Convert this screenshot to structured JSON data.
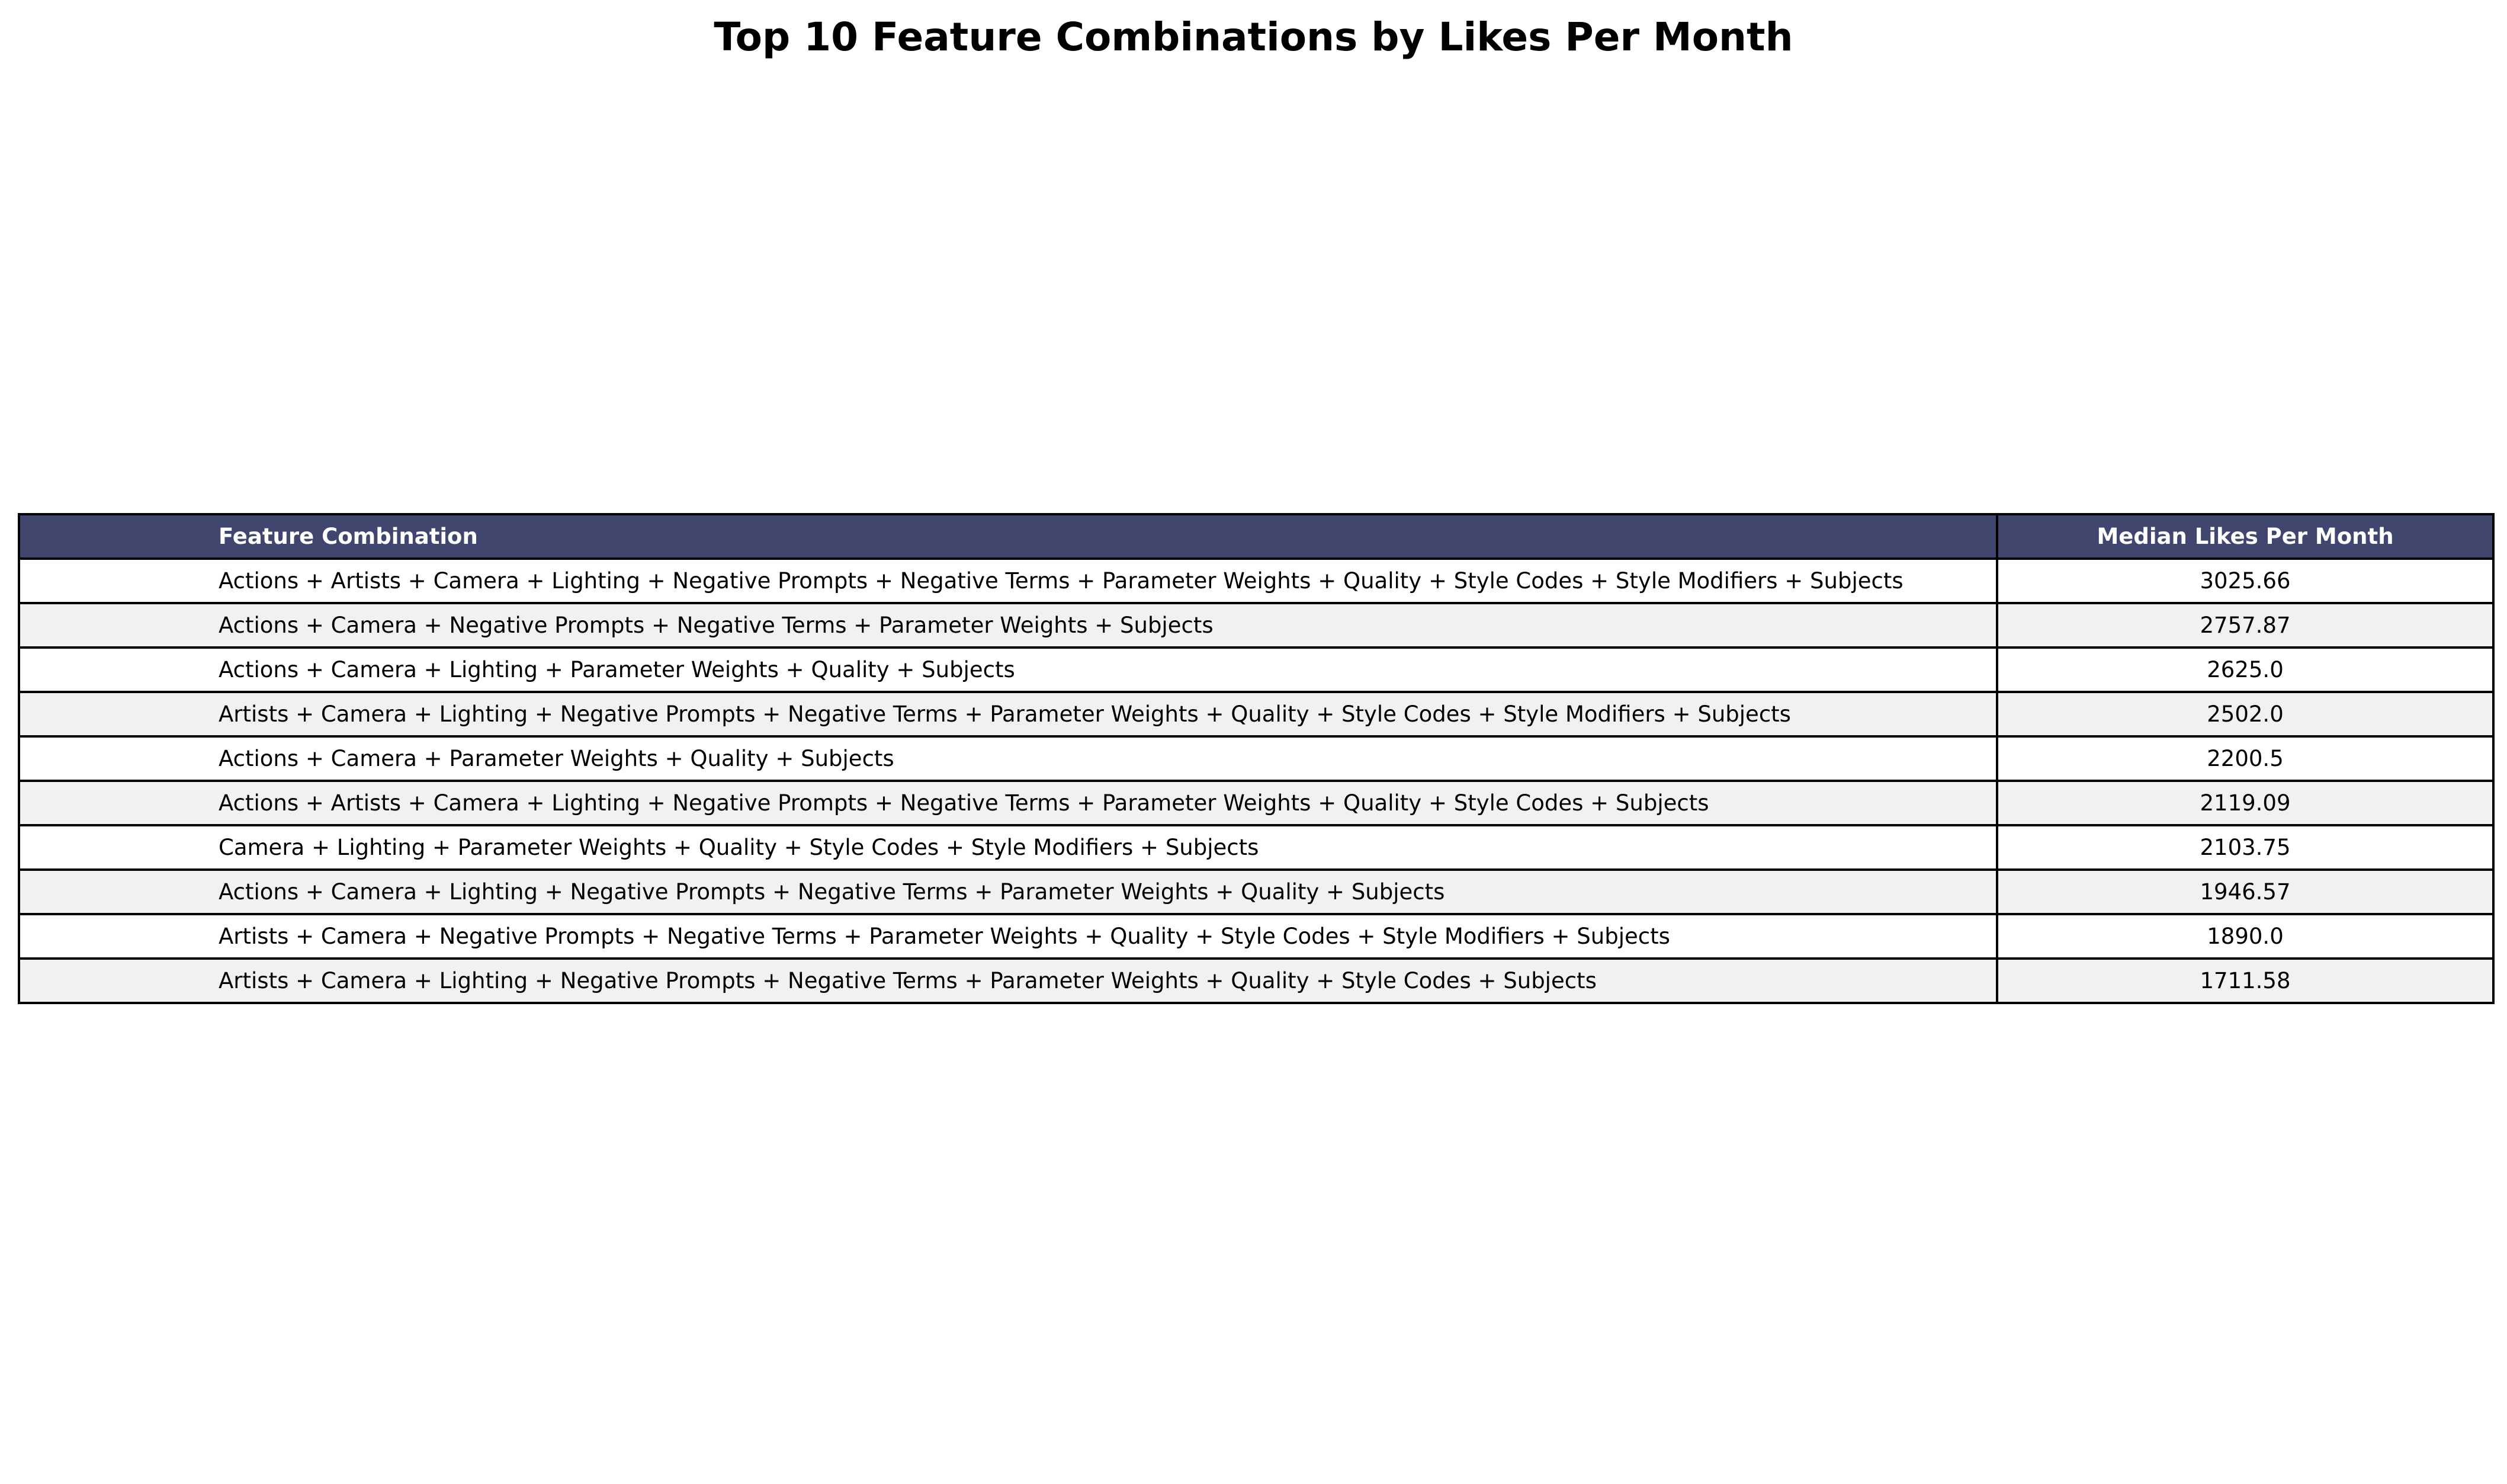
{
  "chart_data": {
    "type": "table",
    "title": "Top 10 Feature Combinations by Likes Per Month",
    "columns": [
      "Feature Combination",
      "Median Likes Per Month"
    ],
    "rows": [
      {
        "feature": "Actions + Artists + Camera + Lighting + Negative Prompts + Negative Terms + Parameter Weights + Quality + Style Codes + Style Modifiers + Subjects",
        "likes": "3025.66"
      },
      {
        "feature": "Actions + Camera + Negative Prompts + Negative Terms + Parameter Weights + Subjects",
        "likes": "2757.87"
      },
      {
        "feature": "Actions + Camera + Lighting + Parameter Weights + Quality + Subjects",
        "likes": "2625.0"
      },
      {
        "feature": "Artists + Camera + Lighting + Negative Prompts + Negative Terms + Parameter Weights + Quality + Style Codes + Style Modifiers + Subjects",
        "likes": "2502.0"
      },
      {
        "feature": "Actions + Camera + Parameter Weights + Quality + Subjects",
        "likes": "2200.5"
      },
      {
        "feature": "Actions + Artists + Camera + Lighting + Negative Prompts + Negative Terms + Parameter Weights + Quality + Style Codes + Subjects",
        "likes": "2119.09"
      },
      {
        "feature": "Camera + Lighting + Parameter Weights + Quality + Style Codes + Style Modifiers + Subjects",
        "likes": "2103.75"
      },
      {
        "feature": "Actions + Camera + Lighting + Negative Prompts + Negative Terms + Parameter Weights + Quality + Subjects",
        "likes": "1946.57"
      },
      {
        "feature": "Artists + Camera + Negative Prompts + Negative Terms + Parameter Weights + Quality + Style Codes + Style Modifiers + Subjects",
        "likes": "1890.0"
      },
      {
        "feature": "Artists + Camera + Lighting + Negative Prompts + Negative Terms + Parameter Weights + Quality + Style Codes + Subjects",
        "likes": "1711.58"
      }
    ],
    "header_color": "#40466e",
    "header_text_color": "#ffffff",
    "row_colors": [
      "#ffffff",
      "#f1f1f2"
    ]
  }
}
